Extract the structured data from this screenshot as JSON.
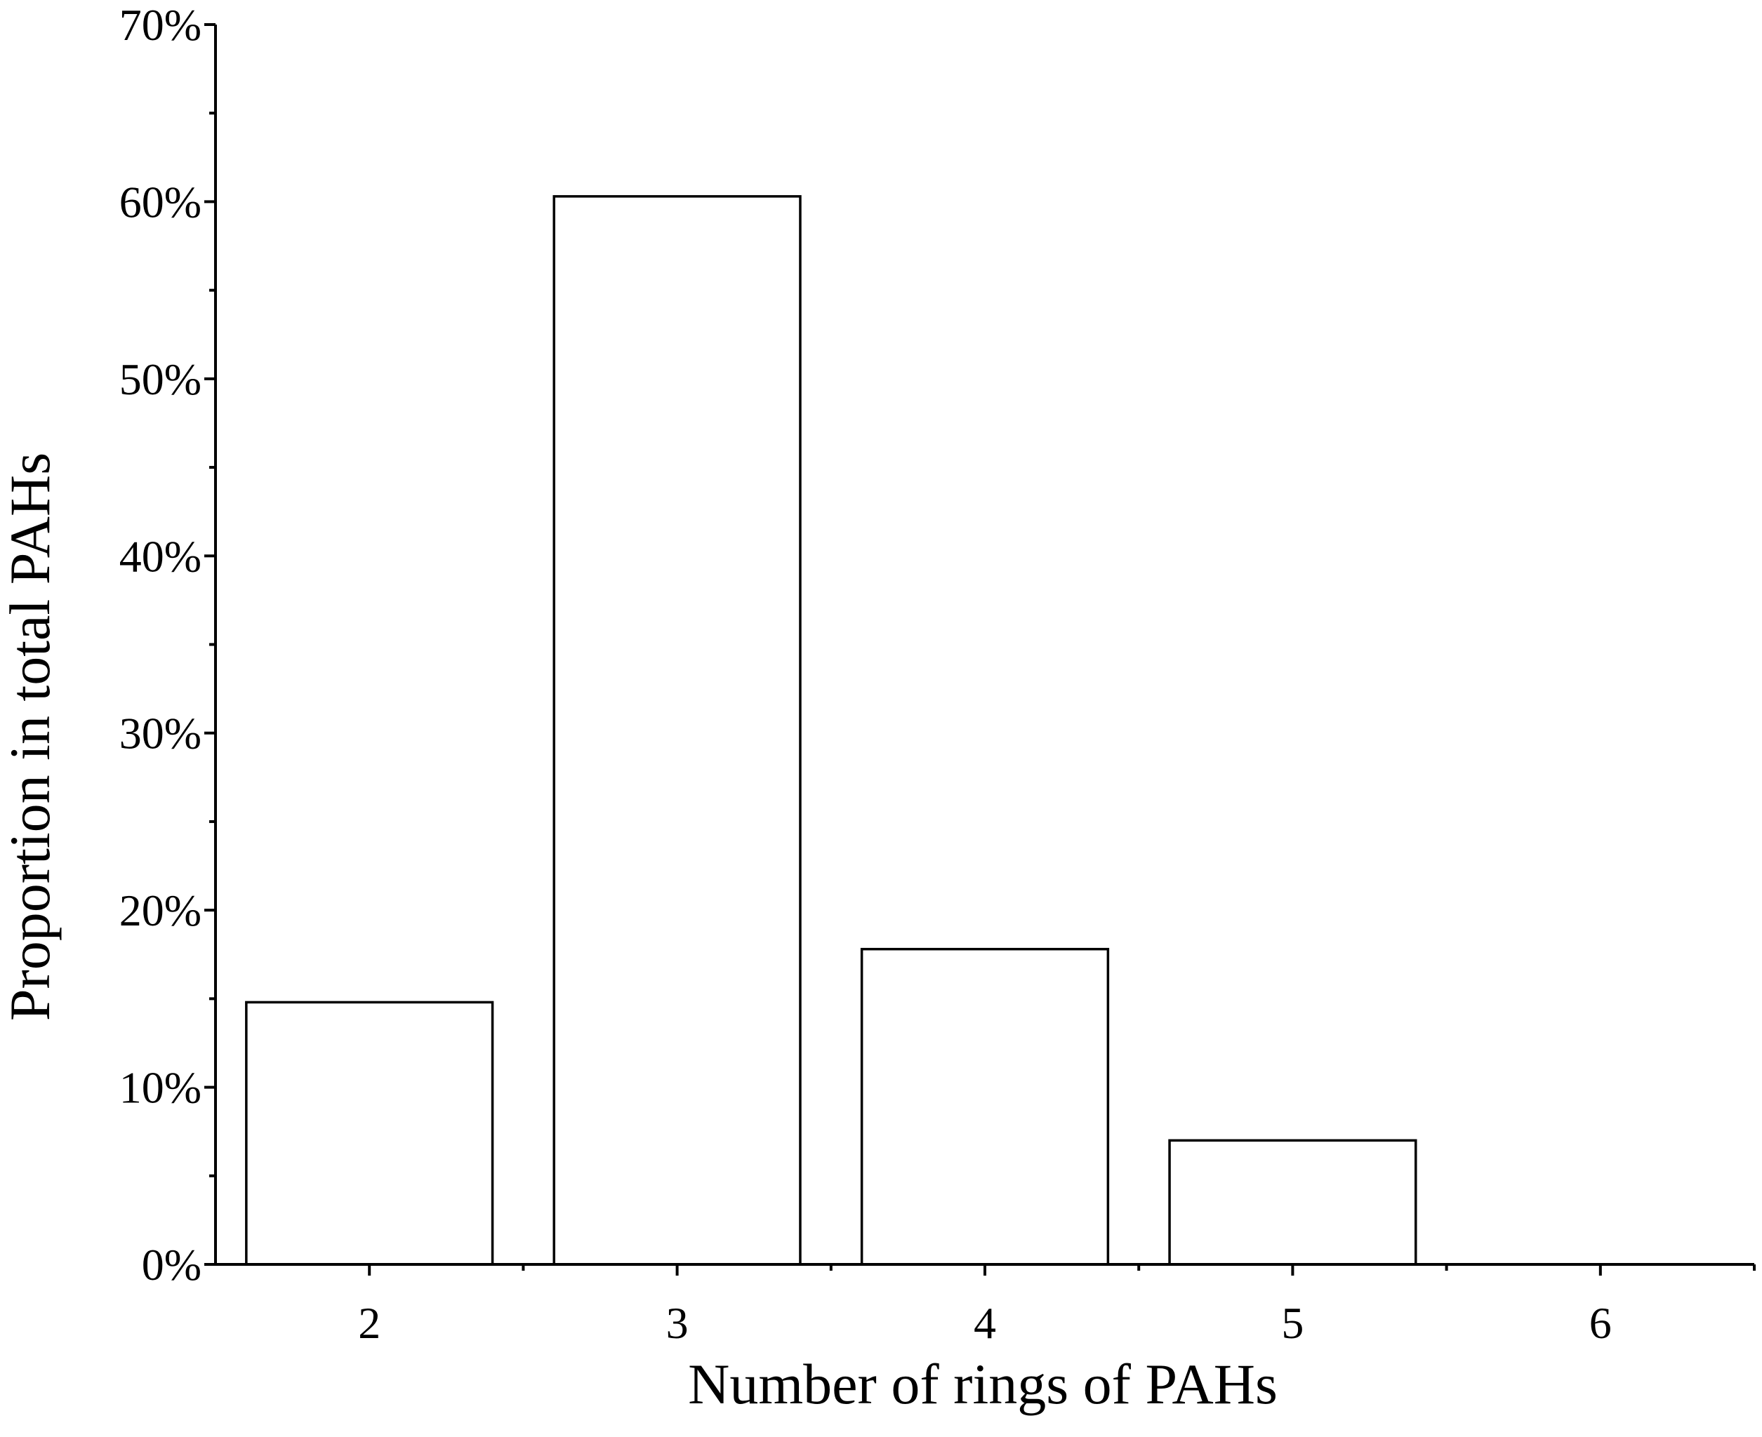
{
  "chart_data": {
    "type": "bar",
    "x_label": "Number of rings of PAHs",
    "y_label": "Proportion in total PAHs",
    "categories": [
      "2",
      "3",
      "4",
      "5",
      "6"
    ],
    "values": [
      14.8,
      60.3,
      17.8,
      7.0,
      0
    ],
    "color": "#ffffff",
    "ylim": [
      0,
      70
    ],
    "yticks": [
      {
        "value": 0,
        "label": "0%"
      },
      {
        "value": 10,
        "label": "10%"
      },
      {
        "value": 20,
        "label": "20%"
      },
      {
        "value": 30,
        "label": "30%"
      },
      {
        "value": 40,
        "label": "40%"
      },
      {
        "value": 50,
        "label": "50%"
      },
      {
        "value": 60,
        "label": "60%"
      },
      {
        "value": 70,
        "label": "70%"
      }
    ],
    "yminorticks": [
      5,
      15,
      25,
      35,
      45,
      55,
      65
    ],
    "grid": false
  }
}
